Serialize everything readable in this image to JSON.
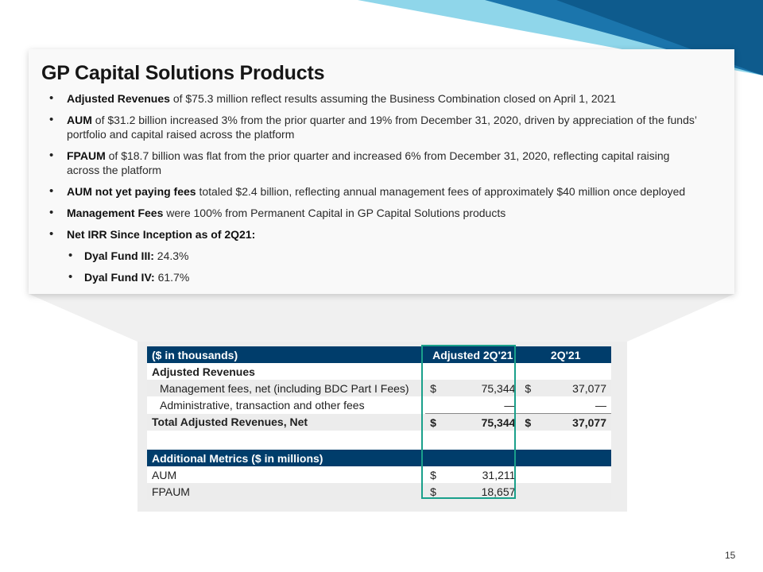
{
  "title": "GP Capital Solutions Products",
  "bullets": [
    {
      "bold": "Adjusted Revenues",
      "text": " of $75.3 million reflect results assuming the Business Combination closed on April 1, 2021"
    },
    {
      "bold": "AUM",
      "text": " of $31.2 billion increased 3% from the prior quarter and 19% from December 31, 2020, driven by appreciation of the funds’ portfolio and capital raised across the platform"
    },
    {
      "bold": "FPAUM",
      "text": " of $18.7 billion was flat from the prior quarter and increased 6% from December 31, 2020, reflecting capital raising across the platform"
    },
    {
      "bold": "AUM not yet paying fees",
      "text": " totaled $2.4 billion, reflecting annual management fees of approximately $40 million once deployed"
    },
    {
      "bold": "Management Fees",
      "text": " were 100% from Permanent Capital in GP Capital Solutions products"
    },
    {
      "bold": "Net IRR Since Inception as of 2Q21:",
      "text": ""
    }
  ],
  "sub_bullets": [
    {
      "bold": "Dyal Fund III:",
      "text": " 24.3%"
    },
    {
      "bold": "Dyal Fund IV:",
      "text": " 61.7%"
    }
  ],
  "table": {
    "header": {
      "label": "($ in thousands)",
      "col1": "Adjusted 2Q'21",
      "col2": "2Q'21"
    },
    "section1": "Adjusted Revenues",
    "rows": [
      {
        "label": "Management fees, net (including BDC Part I Fees)",
        "cur1": "$",
        "v1": "75,344",
        "cur2": "$",
        "v2": "37,077"
      },
      {
        "label": "Administrative, transaction and other fees",
        "cur1": "",
        "v1": "—",
        "cur2": "",
        "v2": "—"
      }
    ],
    "total": {
      "label": "Total Adjusted Revenues, Net",
      "cur1": "$",
      "v1": "75,344",
      "cur2": "$",
      "v2": "37,077"
    },
    "metrics_header": "Additional Metrics ($ in millions)",
    "metrics": [
      {
        "label": "AUM",
        "cur": "$",
        "value": "31,211"
      },
      {
        "label": "FPAUM",
        "cur": "$",
        "value": "18,657"
      }
    ]
  },
  "page_number": "15",
  "colors": {
    "header_blue": "#003d6b",
    "highlight_teal": "#1aa08b",
    "accent_light": "#8fd3ea"
  }
}
